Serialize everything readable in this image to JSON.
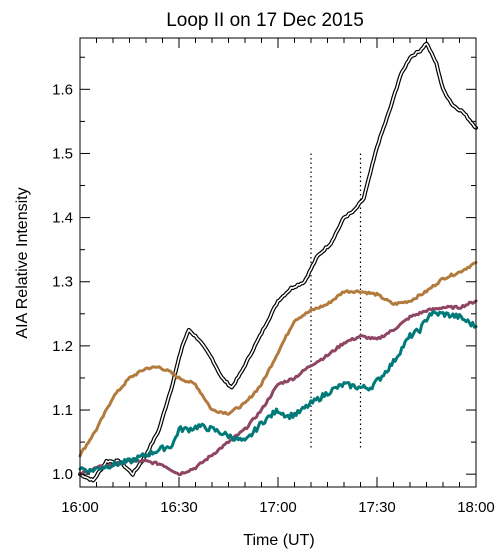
{
  "chart_data": {
    "type": "line",
    "title": "Loop II on 17 Dec 2015",
    "xlabel": "Time (UT)",
    "ylabel": "AIA Relative Intensity",
    "x_unit": "UT",
    "xlim": [
      "16:00",
      "18:00"
    ],
    "ylim": [
      0.98,
      1.68
    ],
    "x_ticks": [
      "16:00",
      "16:30",
      "17:00",
      "17:30",
      "18:00"
    ],
    "y_ticks": [
      "1.0",
      "1.1",
      "1.2",
      "1.3",
      "1.4",
      "1.5",
      "1.6"
    ],
    "grid": false,
    "legend": "none",
    "vertical_markers": [
      "17:10",
      "17:25"
    ],
    "series": [
      {
        "color": "#000000",
        "style": "double-line",
        "x": [
          "16:00",
          "16:04",
          "16:08",
          "16:12",
          "16:16",
          "16:20",
          "16:24",
          "16:28",
          "16:31",
          "16:33",
          "16:36",
          "16:40",
          "16:43",
          "16:46",
          "16:49",
          "16:52",
          "16:56",
          "17:00",
          "17:04",
          "17:08",
          "17:12",
          "17:16",
          "17:20",
          "17:23",
          "17:26",
          "17:30",
          "17:34",
          "17:37",
          "17:40",
          "17:43",
          "17:45",
          "17:48",
          "17:50",
          "17:53",
          "17:56",
          "18:00"
        ],
        "values": [
          1.0,
          0.99,
          1.02,
          1.02,
          1.0,
          1.03,
          1.07,
          1.14,
          1.2,
          1.225,
          1.21,
          1.18,
          1.15,
          1.135,
          1.16,
          1.19,
          1.23,
          1.27,
          1.29,
          1.3,
          1.34,
          1.36,
          1.4,
          1.41,
          1.43,
          1.51,
          1.57,
          1.62,
          1.65,
          1.66,
          1.672,
          1.64,
          1.6,
          1.575,
          1.565,
          1.54
        ]
      },
      {
        "color": "#b27a3c",
        "x": [
          "16:00",
          "16:05",
          "16:10",
          "16:15",
          "16:20",
          "16:24",
          "16:27",
          "16:30",
          "16:35",
          "16:40",
          "16:45",
          "16:50",
          "16:55",
          "17:00",
          "17:05",
          "17:10",
          "17:15",
          "17:20",
          "17:25",
          "17:30",
          "17:35",
          "17:40",
          "17:45",
          "17:50",
          "17:55",
          "18:00"
        ],
        "values": [
          1.03,
          1.07,
          1.12,
          1.15,
          1.165,
          1.167,
          1.16,
          1.15,
          1.14,
          1.1,
          1.095,
          1.11,
          1.14,
          1.19,
          1.24,
          1.255,
          1.265,
          1.285,
          1.285,
          1.28,
          1.265,
          1.27,
          1.285,
          1.305,
          1.315,
          1.33
        ]
      },
      {
        "color": "#8e4664",
        "x": [
          "16:00",
          "16:05",
          "16:10",
          "16:15",
          "16:20",
          "16:25",
          "16:30",
          "16:35",
          "16:40",
          "16:45",
          "16:50",
          "16:55",
          "17:00",
          "17:05",
          "17:10",
          "17:15",
          "17:20",
          "17:25",
          "17:30",
          "17:35",
          "17:40",
          "17:45",
          "17:50",
          "17:55",
          "18:00"
        ],
        "values": [
          1.0,
          1.01,
          1.015,
          1.02,
          1.02,
          1.015,
          1.0,
          1.01,
          1.03,
          1.05,
          1.07,
          1.1,
          1.14,
          1.15,
          1.17,
          1.185,
          1.205,
          1.215,
          1.21,
          1.225,
          1.245,
          1.255,
          1.26,
          1.26,
          1.27
        ]
      },
      {
        "color": "#007a78",
        "x": [
          "16:00",
          "16:03",
          "16:06",
          "16:10",
          "16:15",
          "16:20",
          "16:25",
          "16:28",
          "16:30",
          "16:33",
          "16:36",
          "16:40",
          "16:45",
          "16:50",
          "16:55",
          "17:00",
          "17:03",
          "17:06",
          "17:10",
          "17:13",
          "17:16",
          "17:20",
          "17:25",
          "17:28",
          "17:31",
          "17:35",
          "17:38",
          "17:40",
          "17:43",
          "17:46",
          "17:50",
          "17:55",
          "18:00"
        ],
        "values": [
          1.01,
          1.005,
          1.01,
          1.015,
          1.02,
          1.03,
          1.04,
          1.045,
          1.07,
          1.07,
          1.075,
          1.07,
          1.06,
          1.05,
          1.08,
          1.1,
          1.09,
          1.095,
          1.11,
          1.12,
          1.13,
          1.14,
          1.135,
          1.135,
          1.15,
          1.175,
          1.2,
          1.215,
          1.225,
          1.25,
          1.25,
          1.245,
          1.23
        ]
      }
    ]
  }
}
